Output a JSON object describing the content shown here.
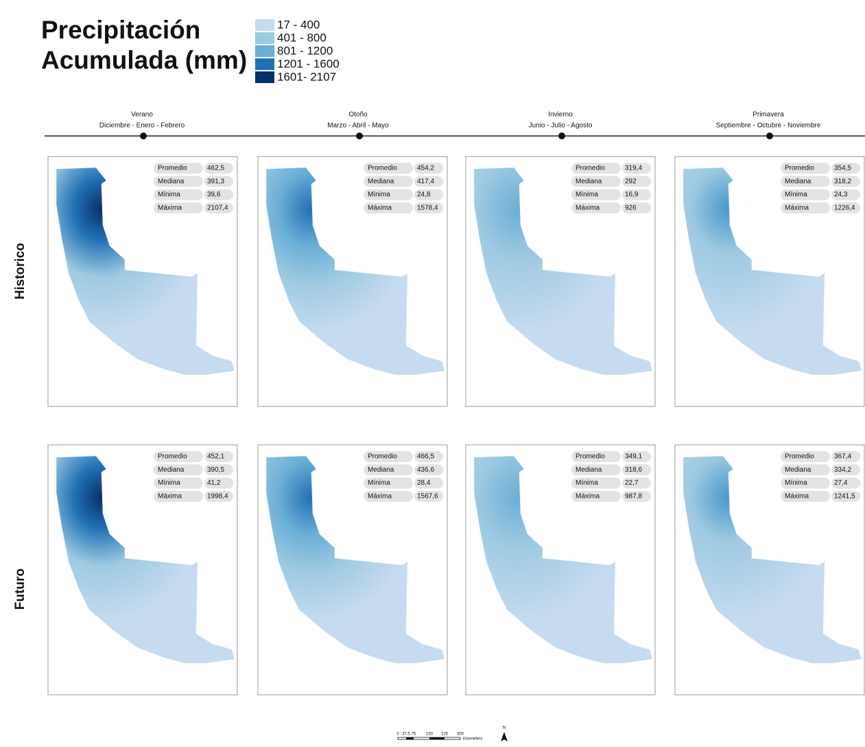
{
  "title": [
    "Precipitación",
    "Acumulada (mm)"
  ],
  "legend": {
    "classes": [
      {
        "label": "17 - 400",
        "color": "#c6dbef"
      },
      {
        "label": "401 - 800",
        "color": "#9ecae1"
      },
      {
        "label": "801 - 1200",
        "color": "#6baed6"
      },
      {
        "label": "1201 - 1600",
        "color": "#2171b5"
      },
      {
        "label": "1601- 2107",
        "color": "#08306b"
      }
    ]
  },
  "seasons": [
    {
      "name": "Verano",
      "months": "Diciembre - Enero - Febrero"
    },
    {
      "name": "Otoño",
      "months": "Marzo - Abril - Mayo"
    },
    {
      "name": "Invierno",
      "months": "Junio - Julio - Agosto"
    },
    {
      "name": "Primavera",
      "months": "Septiembre - Octubre - Noviembre"
    }
  ],
  "stat_labels": [
    "Promedio",
    "Mediana",
    "Mínima",
    "Máxima"
  ],
  "rows": [
    {
      "label": "Historico",
      "panels": [
        [
          "462,5",
          "391,3",
          "39,6",
          "2107,4"
        ],
        [
          "454,2",
          "417,4",
          "24,8",
          "1578,4"
        ],
        [
          "319,4",
          "292",
          "16,9",
          "926"
        ],
        [
          "354,5",
          "318,2",
          "24,3",
          "1226,4"
        ]
      ]
    },
    {
      "label": "Futuro",
      "panels": [
        [
          "452,1",
          "390,5",
          "41,2",
          "1998,4"
        ],
        [
          "466,5",
          "436,6",
          "28,4",
          "1567,6"
        ],
        [
          "349,1",
          "318,6",
          "22,7",
          "987,8"
        ],
        [
          "367,4",
          "334,2",
          "27,4",
          "1241,5"
        ]
      ]
    }
  ],
  "scale_bar": {
    "labels": [
      "0",
      "37,5",
      "75",
      "150",
      "225",
      "300"
    ],
    "unit": "Kilometers"
  },
  "north": "N"
}
